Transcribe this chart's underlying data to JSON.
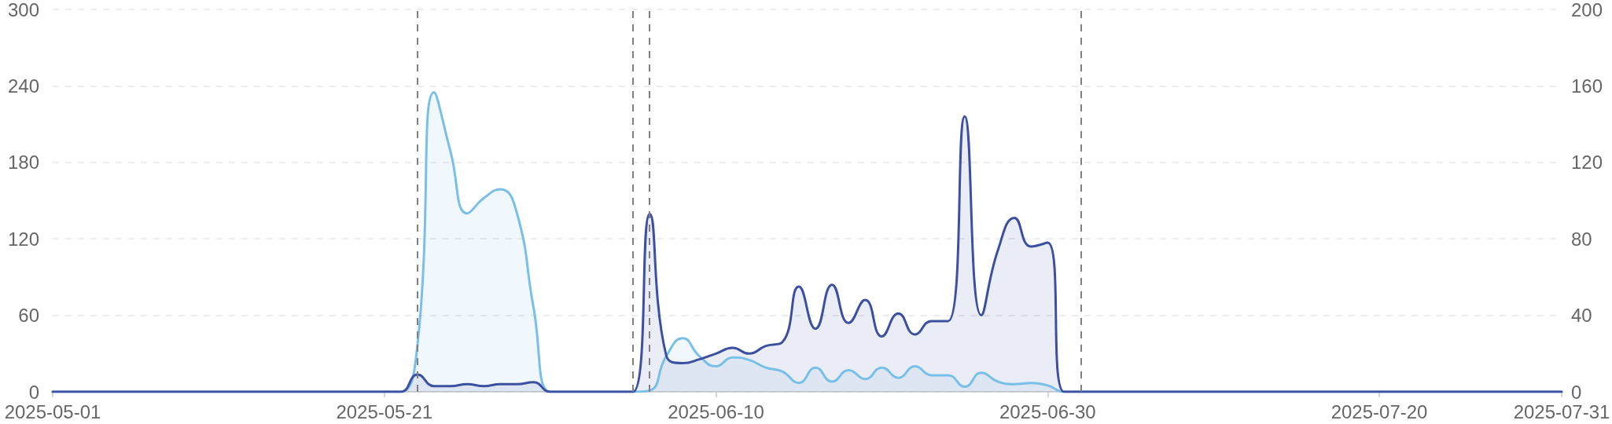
{
  "chart_data": {
    "type": "area",
    "x": [
      "2025-05-01",
      "2025-05-02",
      "2025-05-03",
      "2025-05-04",
      "2025-05-05",
      "2025-05-06",
      "2025-05-07",
      "2025-05-08",
      "2025-05-09",
      "2025-05-10",
      "2025-05-11",
      "2025-05-12",
      "2025-05-13",
      "2025-05-14",
      "2025-05-15",
      "2025-05-16",
      "2025-05-17",
      "2025-05-18",
      "2025-05-19",
      "2025-05-20",
      "2025-05-21",
      "2025-05-22",
      "2025-05-23",
      "2025-05-24",
      "2025-05-25",
      "2025-05-26",
      "2025-05-27",
      "2025-05-28",
      "2025-05-29",
      "2025-05-30",
      "2025-05-31",
      "2025-06-01",
      "2025-06-02",
      "2025-06-03",
      "2025-06-04",
      "2025-06-05",
      "2025-06-06",
      "2025-06-07",
      "2025-06-08",
      "2025-06-09",
      "2025-06-10",
      "2025-06-11",
      "2025-06-12",
      "2025-06-13",
      "2025-06-14",
      "2025-06-15",
      "2025-06-16",
      "2025-06-17",
      "2025-06-18",
      "2025-06-19",
      "2025-06-20",
      "2025-06-21",
      "2025-06-22",
      "2025-06-23",
      "2025-06-24",
      "2025-06-25",
      "2025-06-26",
      "2025-06-27",
      "2025-06-28",
      "2025-06-29",
      "2025-06-30",
      "2025-07-01",
      "2025-07-02",
      "2025-07-03",
      "2025-07-04",
      "2025-07-05",
      "2025-07-06",
      "2025-07-07",
      "2025-07-08",
      "2025-07-09",
      "2025-07-10",
      "2025-07-11",
      "2025-07-12",
      "2025-07-13",
      "2025-07-14",
      "2025-07-15",
      "2025-07-16",
      "2025-07-17",
      "2025-07-18",
      "2025-07-19",
      "2025-07-20",
      "2025-07-21",
      "2025-07-22",
      "2025-07-23",
      "2025-07-24",
      "2025-07-25",
      "2025-07-26",
      "2025-07-27",
      "2025-07-28",
      "2025-07-29",
      "2025-07-30",
      "2025-07-31"
    ],
    "series": [
      {
        "color": "#78bfe9",
        "values": [
          0,
          0,
          0,
          0,
          0,
          0,
          0,
          0,
          0,
          0,
          0,
          0,
          0,
          0,
          0,
          0,
          0,
          0,
          0,
          0,
          0,
          0,
          37,
          235,
          188,
          140,
          152,
          159,
          140,
          66,
          0,
          0,
          0,
          0,
          0,
          0,
          1,
          28,
          42,
          28,
          20,
          27,
          25,
          19,
          16,
          7,
          19,
          8,
          17,
          10,
          19,
          11,
          20,
          13,
          13,
          4,
          15,
          8,
          6,
          7,
          5,
          0,
          0,
          0,
          0,
          0,
          0,
          0,
          0,
          0,
          0,
          0,
          0,
          0,
          0,
          0,
          0,
          0,
          0,
          0,
          0,
          0,
          0,
          0,
          0,
          0,
          0,
          0,
          0,
          0,
          0,
          0
        ]
      },
      {
        "color": "#3c50a2",
        "axis": "y2",
        "values": [
          0,
          0,
          0,
          0,
          0,
          0,
          0,
          0,
          0,
          0,
          0,
          0,
          0,
          0,
          0,
          0,
          0,
          0,
          0,
          0,
          0,
          0,
          9,
          3,
          3,
          4,
          3,
          4,
          4,
          5,
          0,
          0,
          0,
          0,
          0,
          0,
          93,
          19,
          15,
          17,
          20,
          23,
          20,
          24,
          26,
          55,
          33,
          56,
          36,
          48,
          29,
          41,
          30,
          37,
          37,
          144,
          40,
          74,
          91,
          76,
          78,
          0,
          0,
          0,
          0,
          0,
          0,
          0,
          0,
          0,
          0,
          0,
          0,
          0,
          0,
          0,
          0,
          0,
          0,
          0,
          0,
          0,
          0,
          0,
          0,
          0,
          0,
          0,
          0,
          0,
          0,
          0
        ]
      }
    ],
    "xlim": [
      "2025-05-01",
      "2025-07-31"
    ],
    "xticks": [
      "2025-05-01",
      "2025-05-21",
      "2025-06-10",
      "2025-06-30",
      "2025-07-20",
      "2025-07-31"
    ],
    "ylim": [
      0,
      300
    ],
    "yticks": [
      0,
      60,
      120,
      180,
      240,
      300
    ],
    "y2lim": [
      0,
      200
    ],
    "y2ticks": [
      0,
      40,
      80,
      120,
      160,
      200
    ],
    "grid": "y",
    "marker": "none",
    "line_style": "solid",
    "ref_lines": [
      {
        "axis": "x",
        "value": "2025-05-23",
        "color": "#808080",
        "line_style": "dashed"
      },
      {
        "axis": "x",
        "value": "2025-06-05",
        "color": "#808080",
        "line_style": "dashed"
      },
      {
        "axis": "x",
        "value": "2025-06-06",
        "color": "#808080",
        "line_style": "dashed"
      },
      {
        "axis": "x",
        "value": "2025-07-02",
        "color": "#808080",
        "line_style": "dashed"
      }
    ]
  }
}
